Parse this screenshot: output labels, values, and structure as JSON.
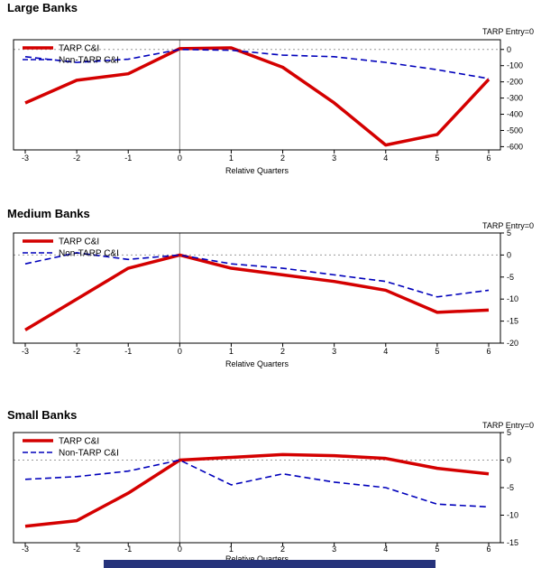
{
  "page": {
    "background": "#ffffff",
    "bottom_bar_color": "#26337b"
  },
  "chart_data": [
    {
      "type": "line",
      "title": "Large Banks",
      "annotation": "TARP Entry=0",
      "xlabel": "Relative Quarters",
      "x": [
        -3,
        -2,
        -1,
        0,
        1,
        2,
        3,
        4,
        5,
        6
      ],
      "series": [
        {
          "name": "TARP C&I",
          "color": "#d40000",
          "style": "solid",
          "width": 3.5,
          "values": [
            -330,
            -190,
            -150,
            5,
            10,
            -110,
            -330,
            -590,
            -525,
            -185
          ]
        },
        {
          "name": "Non-TARP C&I",
          "color": "#0000bb",
          "style": "dashed",
          "width": 1.6,
          "values": [
            -45,
            -80,
            -60,
            0,
            -5,
            -35,
            -45,
            -80,
            -125,
            -180
          ]
        }
      ],
      "ylim": [
        -620,
        60
      ],
      "yticks": [
        0,
        -100,
        -200,
        -300,
        -400,
        -500,
        -600
      ],
      "legend_position": "top-left",
      "grid": "dotted-zero-line",
      "event_line_x": 0
    },
    {
      "type": "line",
      "title": "Medium Banks",
      "annotation": "TARP Entry=0",
      "xlabel": "Relative Quarters",
      "x": [
        -3,
        -2,
        -1,
        0,
        1,
        2,
        3,
        4,
        5,
        6
      ],
      "series": [
        {
          "name": "TARP C&I",
          "color": "#d40000",
          "style": "solid",
          "width": 3.5,
          "values": [
            -17,
            -10,
            -3,
            0,
            -3,
            -4.5,
            -6,
            -8,
            -13,
            -12.5
          ]
        },
        {
          "name": "Non-TARP C&I",
          "color": "#0000bb",
          "style": "dashed",
          "width": 1.6,
          "values": [
            -2,
            0.5,
            -1,
            0,
            -2,
            -3,
            -4.5,
            -6,
            -9.5,
            -8
          ]
        }
      ],
      "ylim": [
        -20,
        5
      ],
      "yticks": [
        5,
        0,
        -5,
        -10,
        -15,
        -20
      ],
      "legend_position": "top-left",
      "grid": "dotted-zero-line",
      "event_line_x": 0
    },
    {
      "type": "line",
      "title": "Small Banks",
      "annotation": "TARP Entry=0",
      "xlabel": "Relative Quarters",
      "x": [
        -3,
        -2,
        -1,
        0,
        1,
        2,
        3,
        4,
        5,
        6
      ],
      "series": [
        {
          "name": "TARP C&I",
          "color": "#d40000",
          "style": "solid",
          "width": 3.5,
          "values": [
            -12,
            -11,
            -6,
            0,
            0.5,
            1,
            0.8,
            0.3,
            -1.5,
            -2.5
          ]
        },
        {
          "name": "Non-TARP C&I",
          "color": "#0000bb",
          "style": "dashed",
          "width": 1.6,
          "values": [
            -3.5,
            -3,
            -2,
            0,
            -4.5,
            -2.5,
            -4,
            -5,
            -8,
            -8.5
          ]
        }
      ],
      "ylim": [
        -15,
        5
      ],
      "yticks": [
        5,
        0,
        -5,
        -10,
        -15
      ],
      "legend_position": "top-left",
      "grid": "dotted-zero-line",
      "event_line_x": 0
    }
  ]
}
